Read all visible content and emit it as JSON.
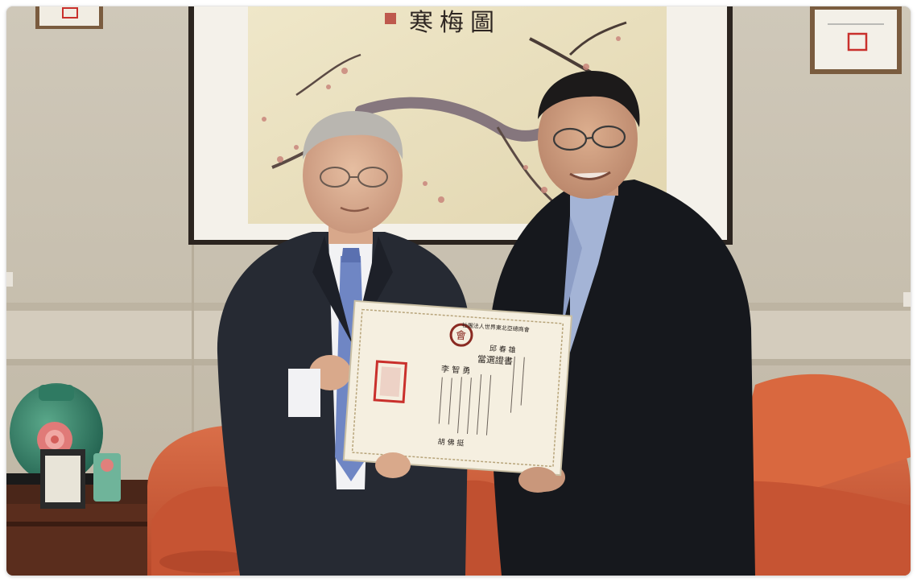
{
  "scene": {
    "calligraphy": "寒梅圖",
    "certificate": {
      "emblem": "會",
      "heading": "當選證書",
      "recipient": "李 智 勇",
      "issuer": "社團法人世界東北亞總商會",
      "signature": "胡 佛 挺",
      "honoree": "邱 春 雄"
    }
  },
  "colors": {
    "wall": "#cdc5b5",
    "sofa": "#d2613f",
    "painting_paper": "#ece3c3",
    "suit_left": "#262a33",
    "jacket_right": "#16181d",
    "tie": "#6f86c4",
    "certificate": "#f5efe0",
    "seal_red": "#c9302c"
  }
}
